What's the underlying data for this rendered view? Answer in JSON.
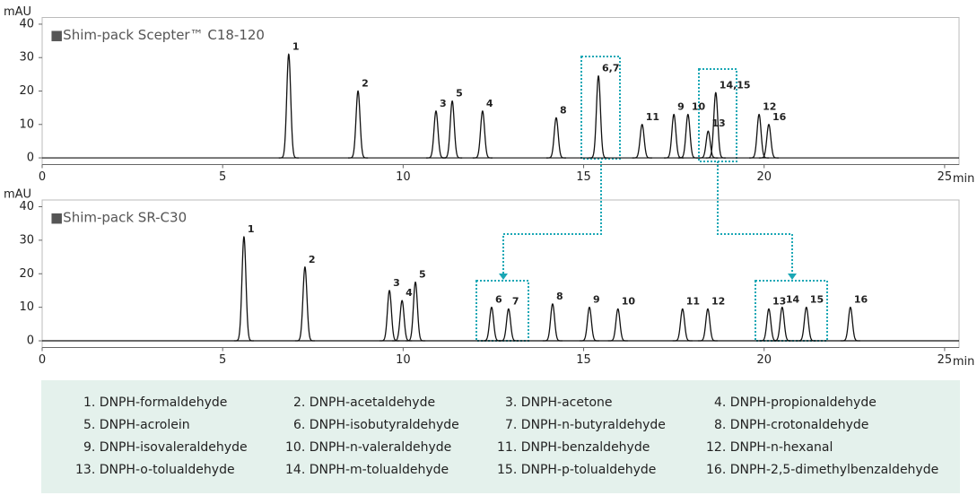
{
  "chart_data": [
    {
      "type": "line",
      "title": "■Shim-pack Scepter™ C18-120",
      "ylabel": "mAU",
      "xlabel": "min",
      "xlim": [
        0,
        25.4
      ],
      "ylim": [
        -2,
        42
      ],
      "xticks": [
        0,
        5,
        10,
        15,
        20,
        25
      ],
      "yticks": [
        0,
        10,
        20,
        30,
        40
      ],
      "color": "#111111",
      "peaks": [
        {
          "label": "1",
          "x": 6.83,
          "y": 31
        },
        {
          "label": "2",
          "x": 8.75,
          "y": 20
        },
        {
          "label": "3",
          "x": 10.91,
          "y": 14
        },
        {
          "label": "5",
          "x": 11.36,
          "y": 17
        },
        {
          "label": "4",
          "x": 12.2,
          "y": 14
        },
        {
          "label": "8",
          "x": 14.24,
          "y": 12
        },
        {
          "label": "6,7",
          "x": 15.41,
          "y": 24.5
        },
        {
          "label": "11",
          "x": 16.62,
          "y": 10
        },
        {
          "label": "9",
          "x": 17.5,
          "y": 13
        },
        {
          "label": "10",
          "x": 17.89,
          "y": 13
        },
        {
          "label": "13",
          "x": 18.45,
          "y": 8
        },
        {
          "label": "14,15",
          "x": 18.66,
          "y": 19.5
        },
        {
          "label": "12",
          "x": 19.86,
          "y": 13
        },
        {
          "label": "16",
          "x": 20.13,
          "y": 10
        }
      ]
    },
    {
      "type": "line",
      "title": "■Shim-pack SR-C30",
      "ylabel": "mAU",
      "xlabel": "min",
      "xlim": [
        0,
        25.4
      ],
      "ylim": [
        -2,
        42
      ],
      "xticks": [
        0,
        5,
        10,
        15,
        20,
        25
      ],
      "yticks": [
        0,
        10,
        20,
        30,
        40
      ],
      "color": "#111111",
      "peaks": [
        {
          "label": "1",
          "x": 5.59,
          "y": 31
        },
        {
          "label": "2",
          "x": 7.28,
          "y": 22
        },
        {
          "label": "3",
          "x": 9.62,
          "y": 15
        },
        {
          "label": "4",
          "x": 9.97,
          "y": 12
        },
        {
          "label": "5",
          "x": 10.34,
          "y": 17.5
        },
        {
          "label": "6",
          "x": 12.45,
          "y": 10
        },
        {
          "label": "7",
          "x": 12.92,
          "y": 9.5
        },
        {
          "label": "8",
          "x": 14.14,
          "y": 11
        },
        {
          "label": "9",
          "x": 15.16,
          "y": 10
        },
        {
          "label": "10",
          "x": 15.95,
          "y": 9.5
        },
        {
          "label": "11",
          "x": 17.74,
          "y": 9.5
        },
        {
          "label": "12",
          "x": 18.44,
          "y": 9.5
        },
        {
          "label": "13",
          "x": 20.13,
          "y": 9.5
        },
        {
          "label": "14",
          "x": 20.5,
          "y": 10
        },
        {
          "label": "15",
          "x": 21.17,
          "y": 10
        },
        {
          "label": "16",
          "x": 22.39,
          "y": 10
        }
      ]
    }
  ],
  "compounds": {
    "items": [
      "1. DNPH-formaldehyde",
      "2. DNPH-acetaldehyde",
      "3. DNPH-acetone",
      "4. DNPH-propionaldehyde",
      "5. DNPH-acrolein",
      "6. DNPH-isobutyraldehyde",
      "7. DNPH-n-butyraldehyde",
      "8. DNPH-crotonaldehyde",
      "9. DNPH-isovaleraldehyde",
      "10. DNPH-n-valeraldehyde",
      "11. DNPH-benzaldehyde",
      "12. DNPH-n-hexanal",
      "13. DNPH-o-tolualdehyde",
      "14. DNPH-m-tolualdehyde",
      "15. DNPH-p-tolualdehyde",
      "16. DNPH-2,5-dimethylbenzaldehyde"
    ]
  }
}
